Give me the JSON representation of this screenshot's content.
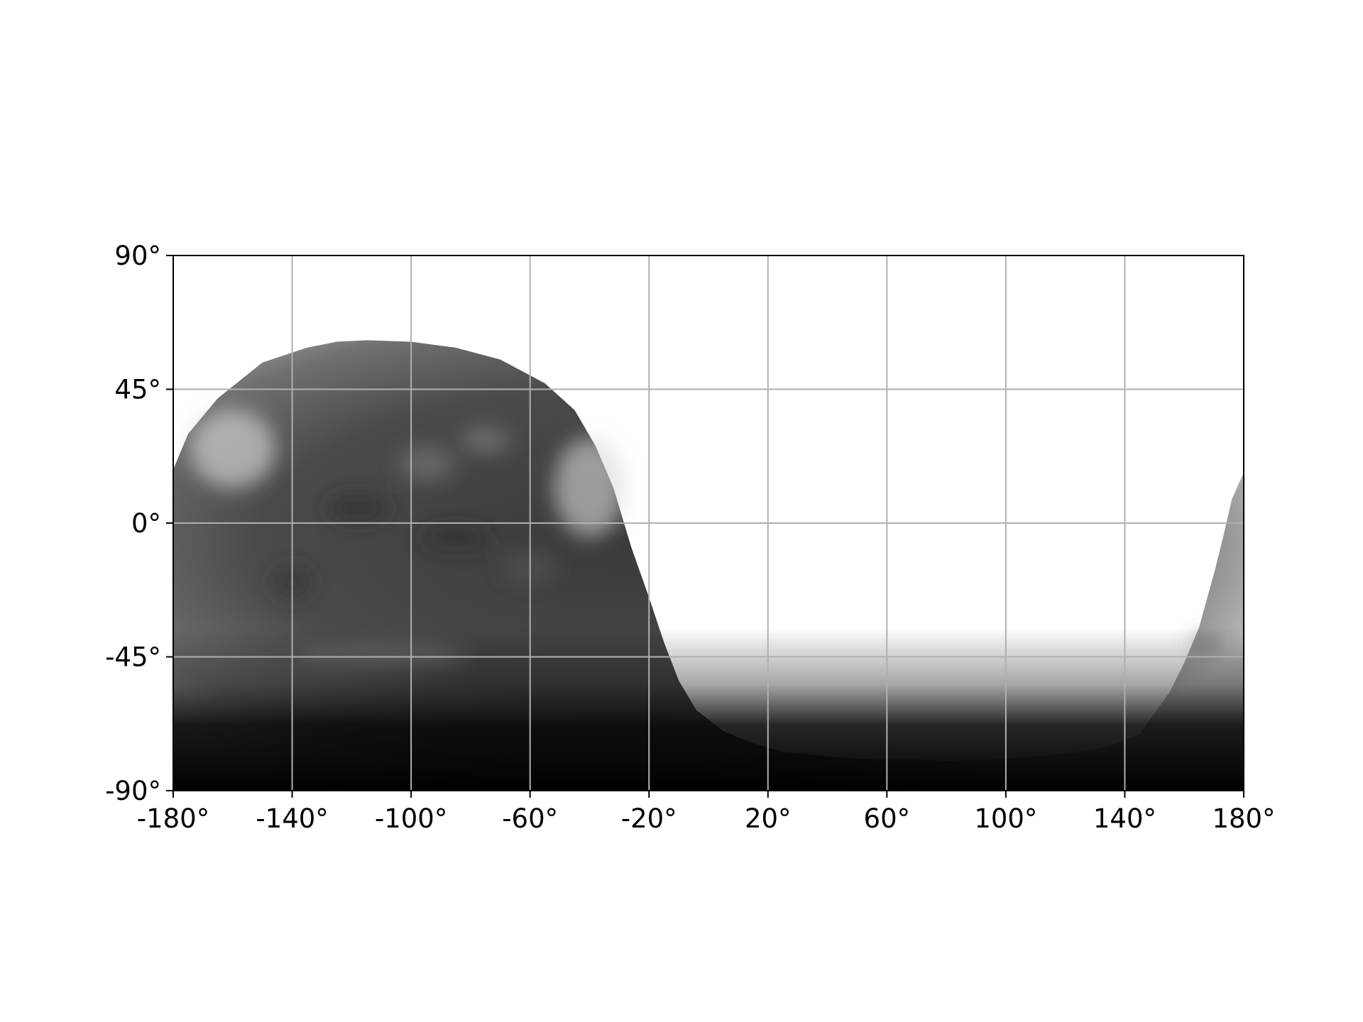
{
  "map": {
    "projection": "equirectangular",
    "coordinate_system": "longitude-latitude (degrees)",
    "lon_range": [
      -180,
      180
    ],
    "lat_range": [
      -90,
      90
    ],
    "grid": true,
    "grid_color": "#b0b0b0",
    "colormap": "grayscale",
    "no_data_color": "#ffffff",
    "x_ticks": [
      {
        "value": -180,
        "label": "-180°"
      },
      {
        "value": -140,
        "label": "-140°"
      },
      {
        "value": -100,
        "label": "-100°"
      },
      {
        "value": -60,
        "label": "-60°"
      },
      {
        "value": -20,
        "label": "-20°"
      },
      {
        "value": 20,
        "label": "20°"
      },
      {
        "value": 60,
        "label": "60°"
      },
      {
        "value": 100,
        "label": "100°"
      },
      {
        "value": 140,
        "label": "140°"
      },
      {
        "value": 180,
        "label": "180°"
      }
    ],
    "y_ticks": [
      {
        "value": 90,
        "label": "90°"
      },
      {
        "value": 45,
        "label": "45°"
      },
      {
        "value": 0,
        "label": "0°"
      },
      {
        "value": -45,
        "label": "-45°"
      },
      {
        "value": -90,
        "label": "-90°"
      }
    ],
    "observed_region_boundary": [
      [
        -180,
        18
      ],
      [
        -175,
        30
      ],
      [
        -165,
        42
      ],
      [
        -150,
        54
      ],
      [
        -135,
        59
      ],
      [
        -125,
        61
      ],
      [
        -115,
        61.5
      ],
      [
        -100,
        61
      ],
      [
        -85,
        59
      ],
      [
        -70,
        55
      ],
      [
        -55,
        47
      ],
      [
        -45,
        38
      ],
      [
        -38,
        26
      ],
      [
        -32,
        12
      ],
      [
        -26,
        -8
      ],
      [
        -20,
        -25
      ],
      [
        -15,
        -40
      ],
      [
        -10,
        -53
      ],
      [
        -4,
        -63
      ],
      [
        5,
        -70
      ],
      [
        15,
        -74
      ],
      [
        25,
        -77
      ],
      [
        40,
        -78.5
      ],
      [
        55,
        -79.5
      ],
      [
        70,
        -79.5
      ],
      [
        80,
        -80
      ],
      [
        95,
        -79.5
      ],
      [
        110,
        -78.5
      ],
      [
        125,
        -77
      ],
      [
        135,
        -75
      ],
      [
        145,
        -71
      ],
      [
        150,
        -64
      ],
      [
        155,
        -57
      ],
      [
        160,
        -47
      ],
      [
        165,
        -35
      ],
      [
        170,
        -17
      ],
      [
        173,
        -5
      ],
      [
        176,
        8
      ],
      [
        180,
        17
      ]
    ]
  }
}
